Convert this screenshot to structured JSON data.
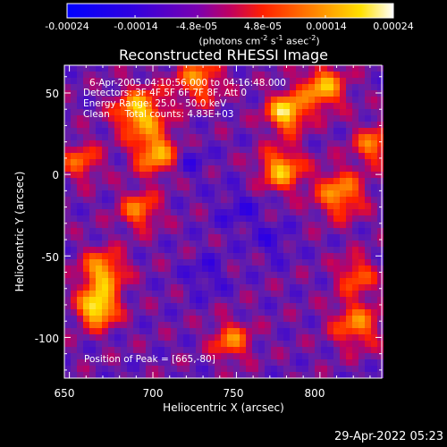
{
  "chart_data": {
    "type": "heatmap",
    "title": "Reconstructed RHESSI Image",
    "xlabel": "Heliocentric X (arcsec)",
    "ylabel": "Heliocentric Y (arcsec)",
    "xlim": [
      647,
      837
    ],
    "ylim": [
      -125,
      67
    ],
    "x_ticks": [
      650,
      700,
      750,
      800
    ],
    "y_ticks": [
      50,
      0,
      -50,
      -100
    ],
    "colorbar": {
      "range": [
        -0.00024,
        0.00024
      ],
      "ticks": [
        "-0.00024",
        "-0.00014",
        "-4.8e-05",
        "4.8e-05",
        "0.00014",
        "0.00024"
      ],
      "tick_values": [
        -0.00024,
        -0.00014,
        -4.8e-05,
        4.8e-05,
        0.00014,
        0.00024
      ],
      "units_prefix": "(photons cm",
      "units_exp1": "-2",
      "units_mid": " s",
      "units_exp2": "-1",
      "units_mid2": " asec",
      "units_exp3": "-2",
      "units_suffix": ")"
    },
    "annotations": {
      "time_range": "6-Apr-2005 04:10:56.000 to 04:16:48.000",
      "detectors": "Detectors: 3F 4F 5F 6F 7F 8F, Att 0",
      "energy": "Energy Range: 25.0 - 50.0 keV",
      "method": "Clean     Total counts: 4.83E+03",
      "peak": "Position of Peak = [665,-80]"
    },
    "peak_position": [
      665,
      -80
    ]
  },
  "footer": {
    "timestamp": "29-Apr-2022 05:23"
  },
  "colors": {
    "background": "#000000",
    "text": "#ffffff",
    "negative": "#0000ff",
    "midlow": "#5a1aa0",
    "positive_high": "#ffffff"
  }
}
